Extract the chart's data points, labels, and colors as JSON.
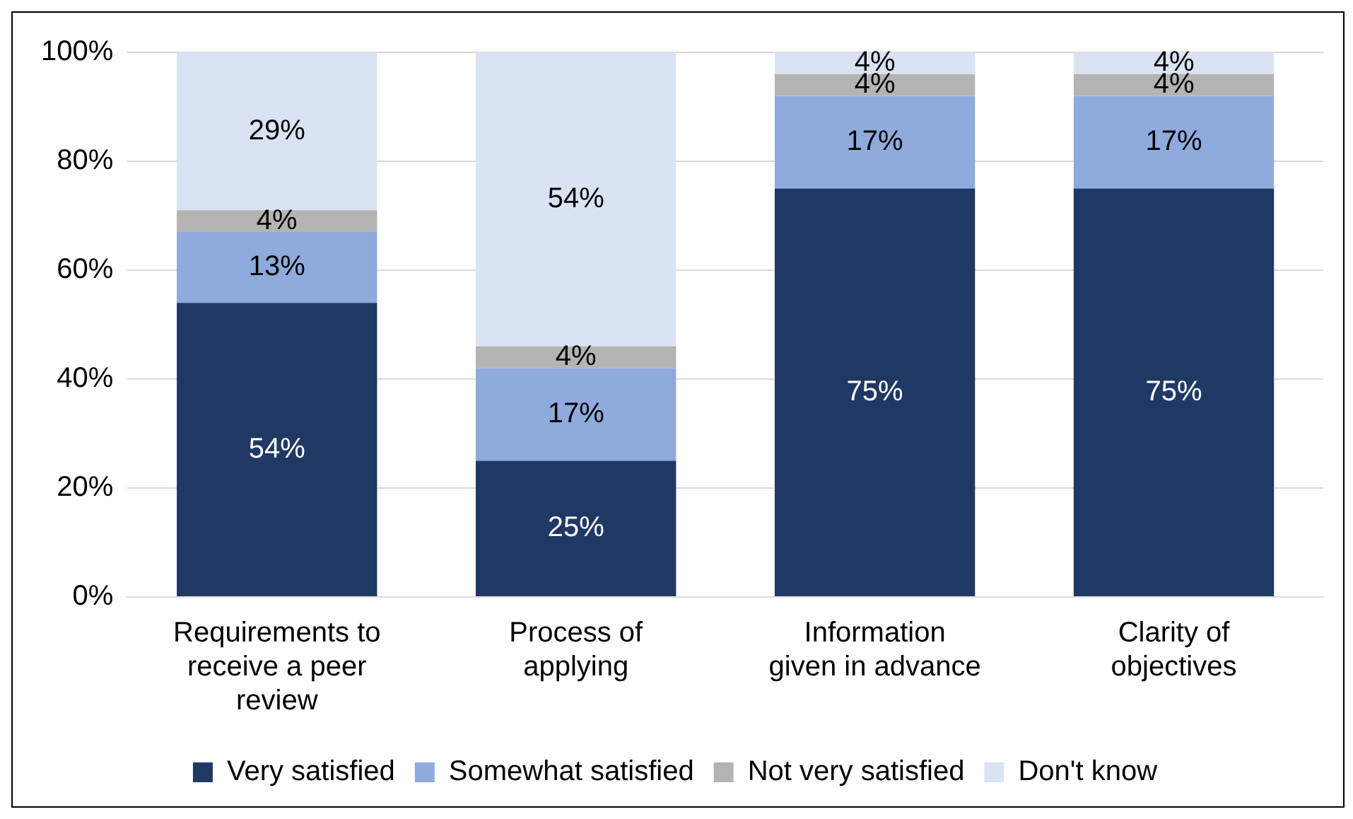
{
  "chart_data": {
    "type": "bar",
    "stacked": true,
    "categories": [
      "Requirements to receive a peer review",
      "Process of applying",
      "Information given in advance",
      "Clarity of objectives"
    ],
    "series": [
      {
        "name": "Very satisfied",
        "color": "#203864",
        "values": [
          54,
          25,
          75,
          75
        ],
        "value_labels": [
          "54%",
          "25%",
          "75%",
          "75%"
        ]
      },
      {
        "name": "Somewhat satisfied",
        "color": "#8faadc",
        "values": [
          13,
          17,
          17,
          17
        ],
        "value_labels": [
          "13%",
          "17%",
          "17%",
          "17%"
        ]
      },
      {
        "name": "Not very satisfied",
        "color": "#b4b4b4",
        "values": [
          4,
          4,
          4,
          4
        ],
        "value_labels": [
          "4%",
          "4%",
          "4%",
          "4%"
        ]
      },
      {
        "name": "Don't know",
        "color": "#dae3f3",
        "values": [
          29,
          54,
          4,
          4
        ],
        "value_labels": [
          "29%",
          "54%",
          "4%",
          "4%"
        ]
      }
    ],
    "ylim": [
      0,
      100
    ],
    "yticks": [
      {
        "value": 0,
        "label": "0%"
      },
      {
        "value": 20,
        "label": "20%"
      },
      {
        "value": 40,
        "label": "40%"
      },
      {
        "value": 60,
        "label": "60%"
      },
      {
        "value": 80,
        "label": "80%"
      },
      {
        "value": 100,
        "label": "100%"
      }
    ],
    "grid": "y",
    "legend": "bottom"
  }
}
